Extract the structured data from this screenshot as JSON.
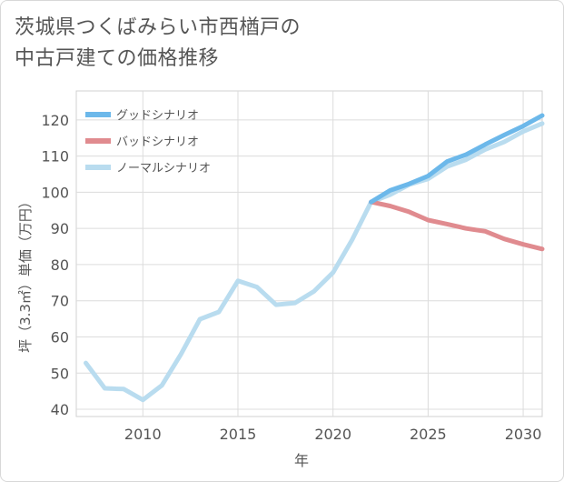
{
  "title": {
    "line1": "茨城県つくばみらい市西楢戸の",
    "line2": "中古戸建ての価格推移"
  },
  "chart_data": {
    "type": "line",
    "xlabel": "年",
    "ylabel": "坪（3.3㎡）単価（万円）",
    "xlim": [
      2006.5,
      2031
    ],
    "ylim": [
      38,
      128
    ],
    "xticks": [
      2010,
      2015,
      2020,
      2025,
      2030
    ],
    "yticks": [
      40,
      50,
      60,
      70,
      80,
      90,
      100,
      110,
      120
    ],
    "grid": true,
    "legend_position": "top-left",
    "series": [
      {
        "name": "グッドシナリオ",
        "color": "#6cb8ea",
        "x": [
          2022,
          2023,
          2024,
          2025,
          2026,
          2027,
          2028,
          2029,
          2030,
          2031
        ],
        "y": [
          97.3,
          100.5,
          102.3,
          104.5,
          108.5,
          110.4,
          113.2,
          115.8,
          118.3,
          121.2
        ]
      },
      {
        "name": "バッドシナリオ",
        "color": "#e08b8f",
        "x": [
          2022,
          2023,
          2024,
          2025,
          2026,
          2027,
          2028,
          2029,
          2030,
          2031
        ],
        "y": [
          97.3,
          96.2,
          94.6,
          92.3,
          91.2,
          90.0,
          89.2,
          87.1,
          85.6,
          84.3
        ]
      },
      {
        "name": "ノーマルシナリオ",
        "color": "#b9dcef",
        "x": [
          2007,
          2008,
          2009,
          2010,
          2011,
          2012,
          2013,
          2014,
          2015,
          2016,
          2017,
          2018,
          2019,
          2020,
          2021,
          2022,
          2023,
          2024,
          2025,
          2026,
          2027,
          2028,
          2029,
          2030,
          2031
        ],
        "y": [
          52.8,
          45.8,
          45.6,
          42.6,
          46.6,
          55.2,
          64.9,
          66.9,
          75.5,
          73.8,
          68.9,
          69.4,
          72.6,
          77.8,
          86.8,
          97.3,
          99.3,
          102.1,
          103.7,
          107.1,
          109.0,
          111.8,
          113.9,
          116.8,
          119.0
        ]
      }
    ]
  }
}
